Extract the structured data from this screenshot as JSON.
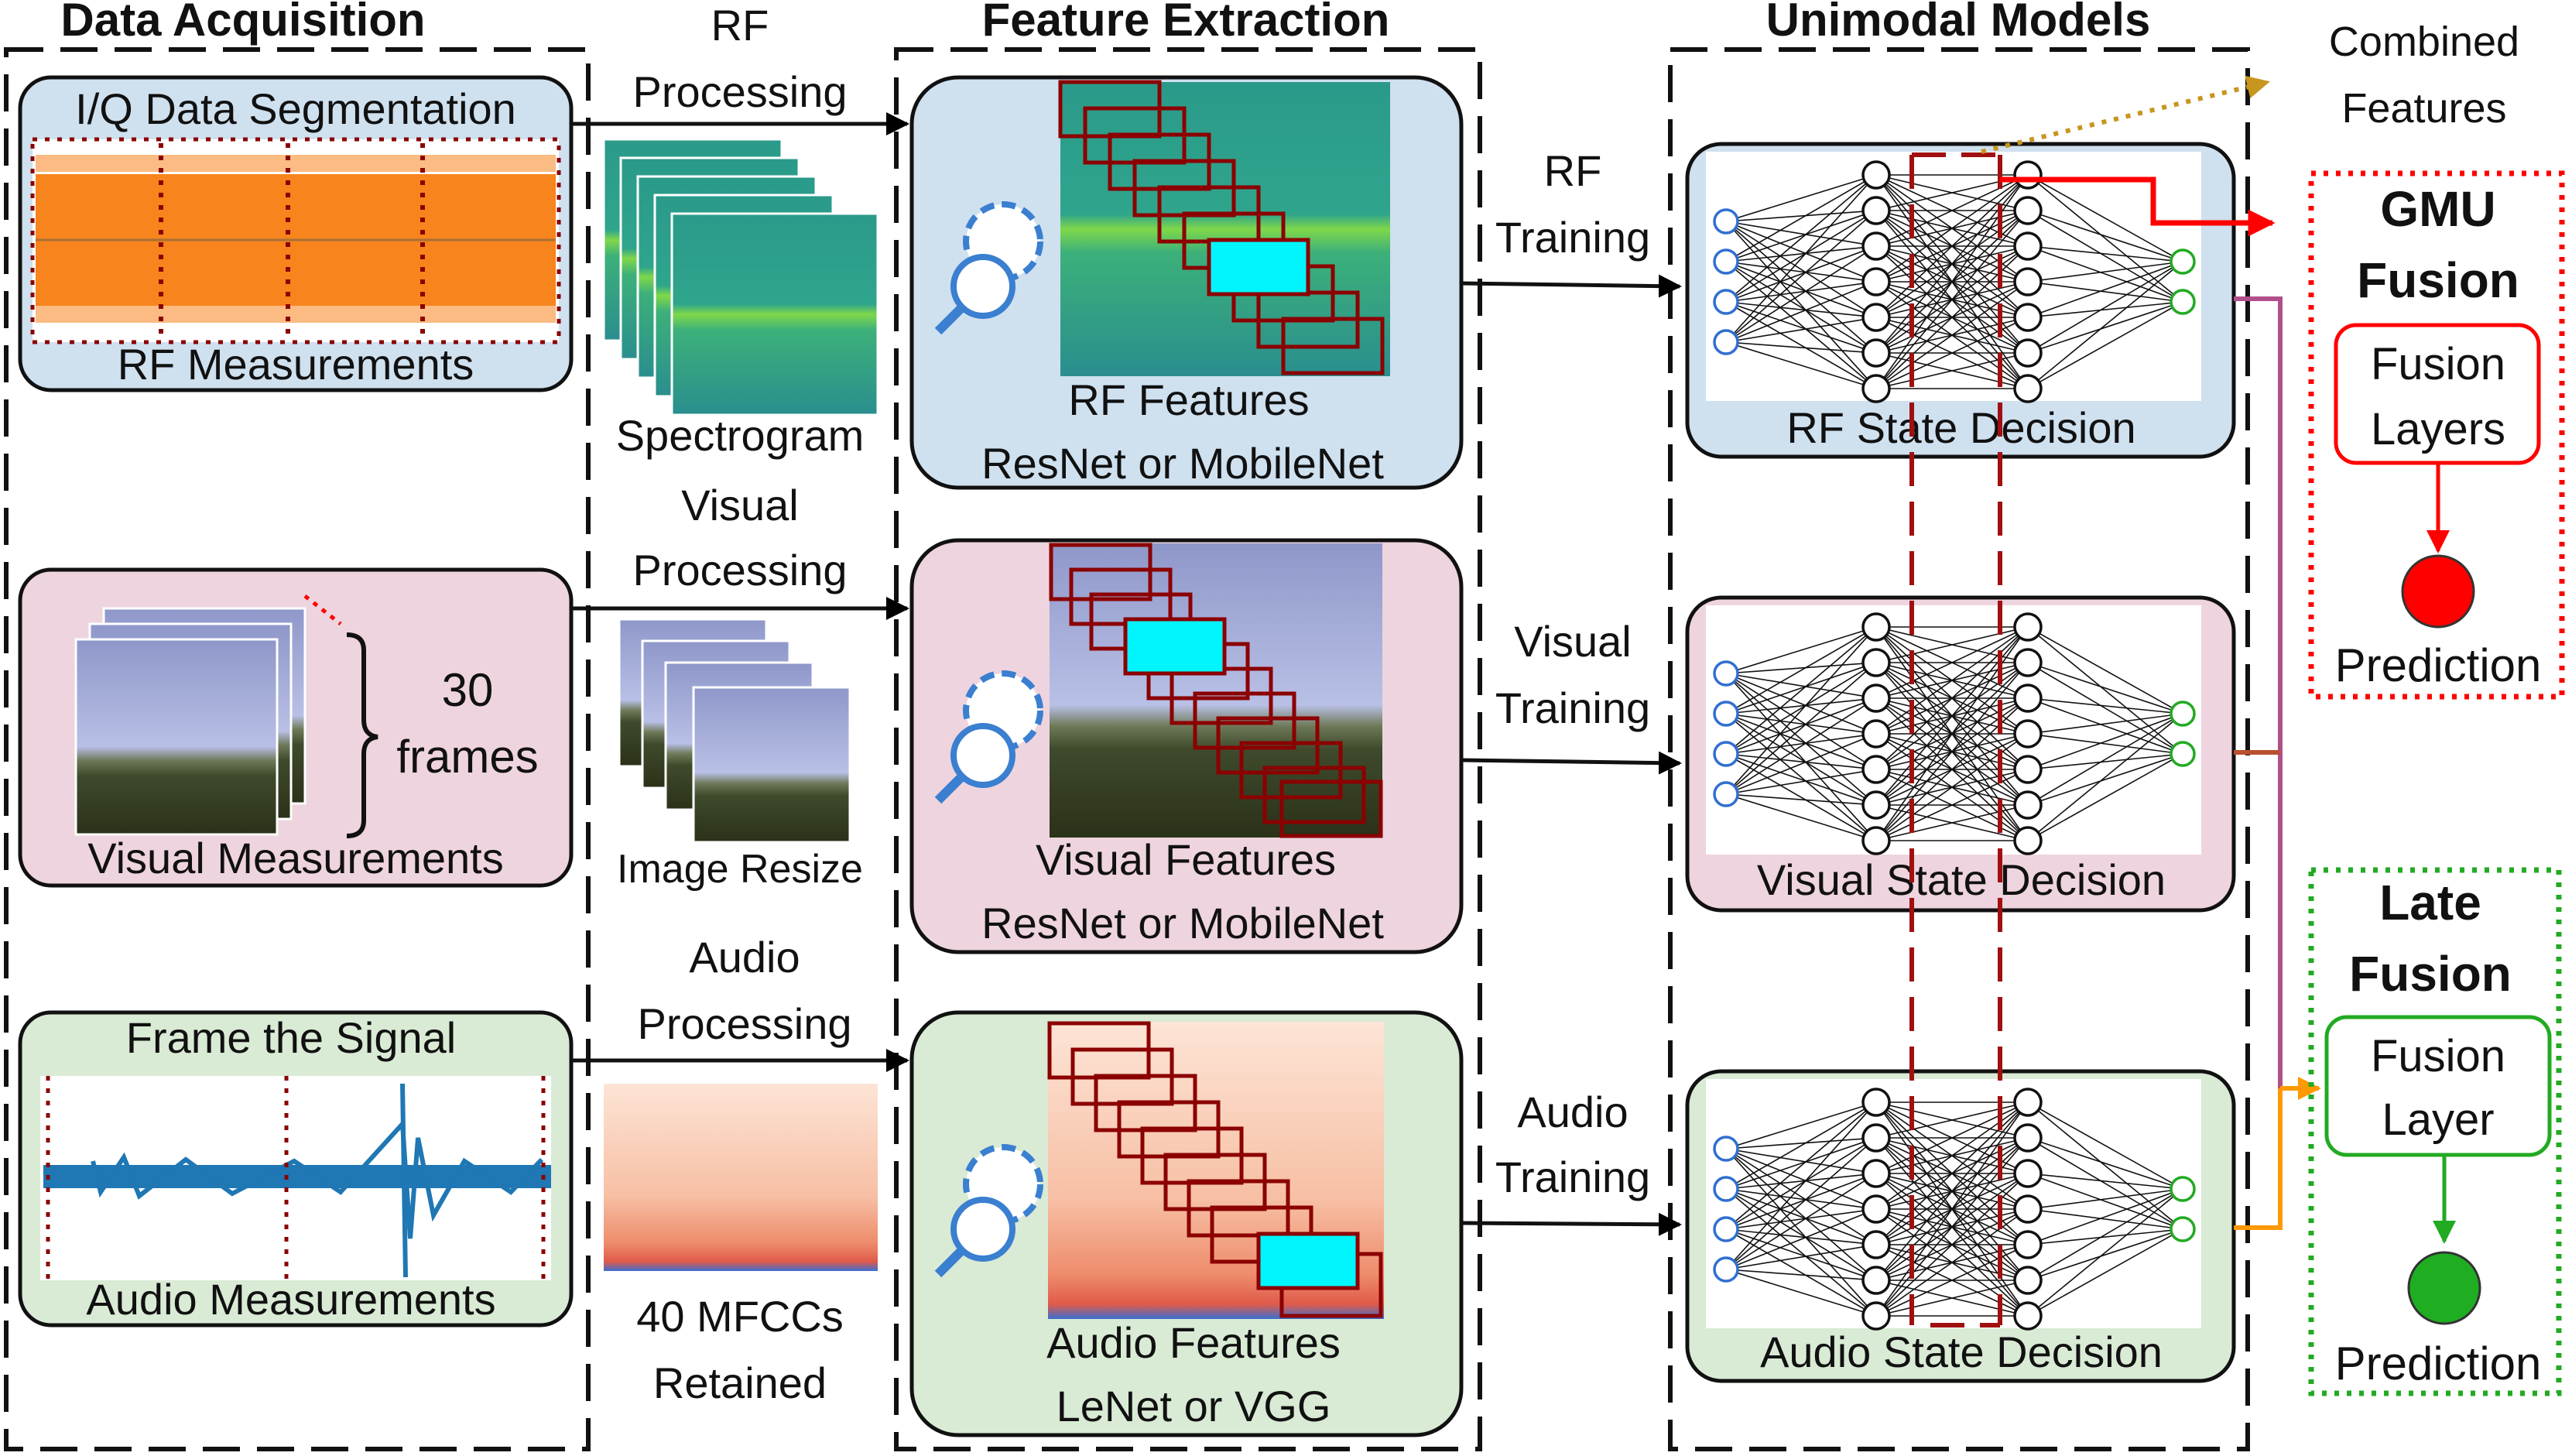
{
  "sections": {
    "data_acquisition": "Data Acquisition",
    "feature_extraction": "Feature Extraction",
    "unimodal_models": "Unimodal Models"
  },
  "acquisition": {
    "rf_title": "I/Q Data Segmentation",
    "rf_caption": "RF Measurements",
    "visual_count": "30",
    "visual_unit": "frames",
    "visual_caption": "Visual Measurements",
    "audio_title": "Frame the Signal",
    "audio_caption": "Audio Measurements"
  },
  "processing": {
    "rf_line1": "RF",
    "rf_line2": "Processing",
    "rf_output": "Spectrogram",
    "visual_line1": "Visual",
    "visual_line2": "Processing",
    "visual_output": "Image Resize",
    "audio_line1": "Audio",
    "audio_line2": "Processing",
    "audio_output_line1": "40 MFCCs",
    "audio_output_line2": "Retained"
  },
  "features": {
    "rf_line1": "RF Features",
    "rf_line2": "ResNet or MobileNet",
    "visual_line1": "Visual Features",
    "visual_line2": "ResNet or MobileNet",
    "audio_line1": "Audio Features",
    "audio_line2": "LeNet or VGG"
  },
  "training": {
    "rf_line1": "RF",
    "rf_line2": "Training",
    "visual_line1": "Visual",
    "visual_line2": "Training",
    "audio_line1": "Audio",
    "audio_line2": "Training"
  },
  "models": {
    "rf_decision": "RF State Decision",
    "visual_decision": "Visual State Decision",
    "audio_decision": "Audio State Decision"
  },
  "combined_features": {
    "line1": "Combined",
    "line2": "Features"
  },
  "gmu_fusion": {
    "title_line1": "GMU",
    "title_line2": "Fusion",
    "layer_line1": "Fusion",
    "layer_line2": "Layers",
    "output": "Prediction"
  },
  "late_fusion": {
    "title_line1": "Late",
    "title_line2": "Fusion",
    "layer_line1": "Fusion",
    "layer_line2": "Layer",
    "output": "Prediction"
  },
  "colors": {
    "blue_panel": "#cfe0ef",
    "pink_panel": "#eed4de",
    "green_panel": "#d9ead5",
    "rf_signal": "#f7841c",
    "audio_signal": "#1f77b4",
    "dark_red": "#8b0000",
    "highlight": "#00f5ff",
    "gmu_red": "#ff0000",
    "late_green": "#22aa22",
    "combined_arrow": "#c8961e",
    "late_arrow": "#ff9900"
  }
}
